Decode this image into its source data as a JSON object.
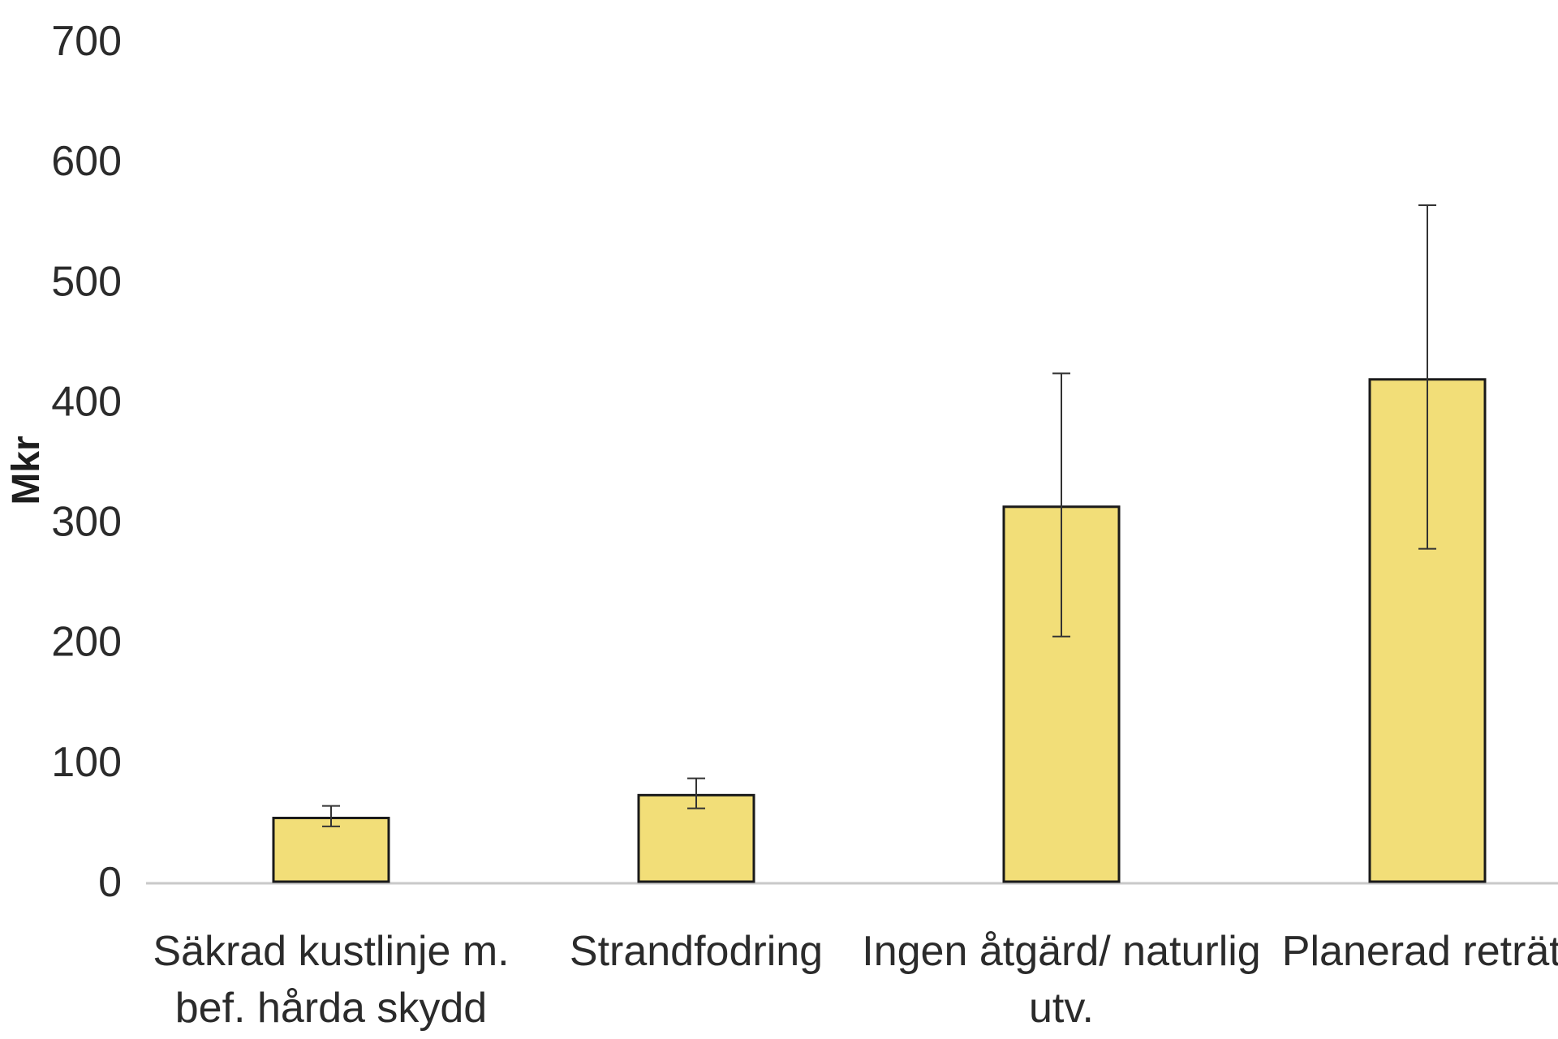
{
  "chart_data": {
    "type": "bar",
    "ylabel": "Mkr",
    "xlabel": "",
    "ylim": [
      0,
      700
    ],
    "yticks": [
      "0",
      "100",
      "200",
      "300",
      "400",
      "500",
      "600",
      "700"
    ],
    "categories": [
      [
        "Säkrad kustlinje m.",
        "bef. hårda skydd"
      ],
      [
        "Strandfodring"
      ],
      [
        "Ingen åtgärd/ naturlig",
        "utv."
      ],
      [
        "Planerad reträtt"
      ]
    ],
    "values": [
      53,
      72,
      312,
      418
    ],
    "error_low": [
      46,
      61,
      204,
      277
    ],
    "error_high": [
      63,
      86,
      423,
      563
    ],
    "grid": false,
    "bar_color": "#f2de78",
    "bar_edge_color": "#1a1a1a",
    "axis_color": "#c9c9c9"
  }
}
